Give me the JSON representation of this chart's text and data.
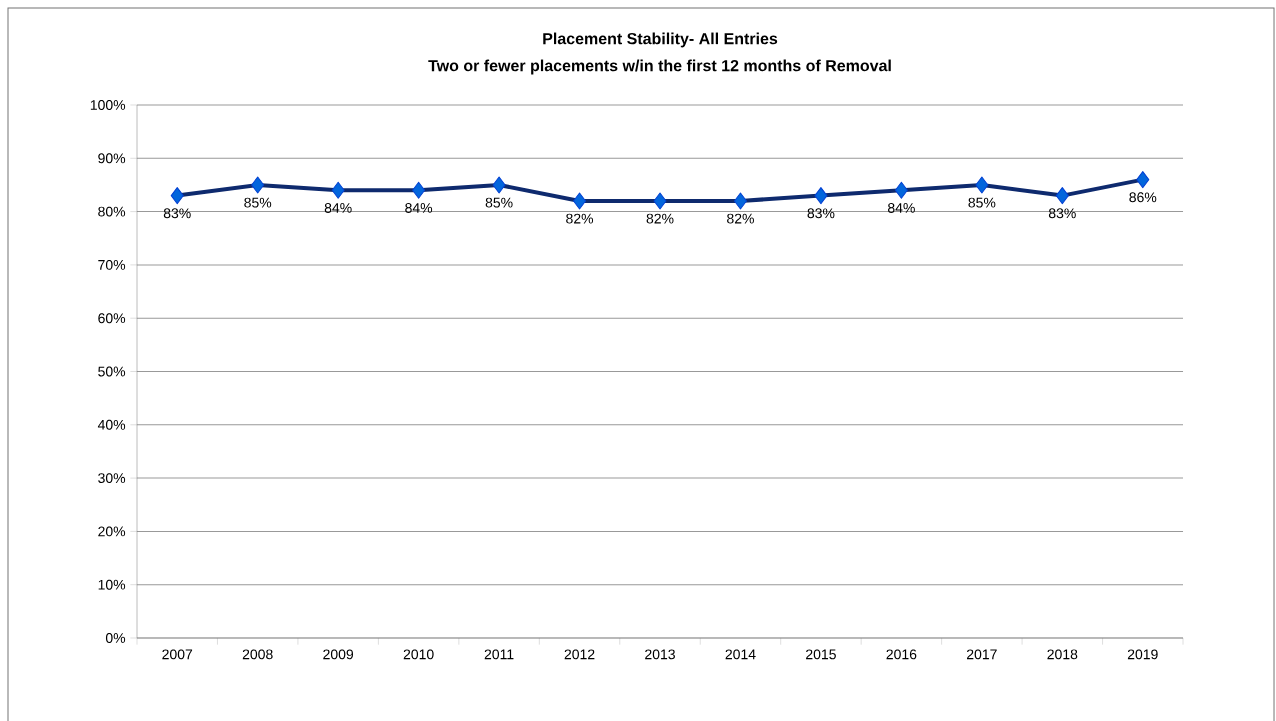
{
  "chart_data": {
    "type": "line",
    "title": "Placement  Stability- All Entries",
    "subtitle": "Two or fewer  placements w/in  the first 12 months of Removal",
    "categories": [
      "2007",
      "2008",
      "2009",
      "2010",
      "2011",
      "2012",
      "2013",
      "2014",
      "2015",
      "2016",
      "2017",
      "2018",
      "2019"
    ],
    "series": [
      {
        "color": "#0e2a6e",
        "values": [
          83,
          85,
          84,
          84,
          85,
          82,
          82,
          82,
          83,
          84,
          85,
          83,
          86
        ],
        "value_labels": [
          "83%",
          "85%",
          "84%",
          "84%",
          "85%",
          "82%",
          "82%",
          "82%",
          "83%",
          "84%",
          "85%",
          "83%",
          "86%"
        ]
      }
    ],
    "ylim": [
      0,
      100
    ],
    "yticks": [
      {
        "value": 0,
        "label": "0%"
      },
      {
        "value": 10,
        "label": "10%"
      },
      {
        "value": 20,
        "label": "20%"
      },
      {
        "value": 30,
        "label": "30%"
      },
      {
        "value": 40,
        "label": "40%"
      },
      {
        "value": 50,
        "label": "50%"
      },
      {
        "value": 60,
        "label": "60%"
      },
      {
        "value": 70,
        "label": "70%"
      },
      {
        "value": 80,
        "label": "80%"
      },
      {
        "value": 90,
        "label": "90%"
      },
      {
        "value": 100,
        "label": "100%"
      }
    ],
    "grid": "y",
    "marker": "diamond",
    "line_style": "solid"
  }
}
